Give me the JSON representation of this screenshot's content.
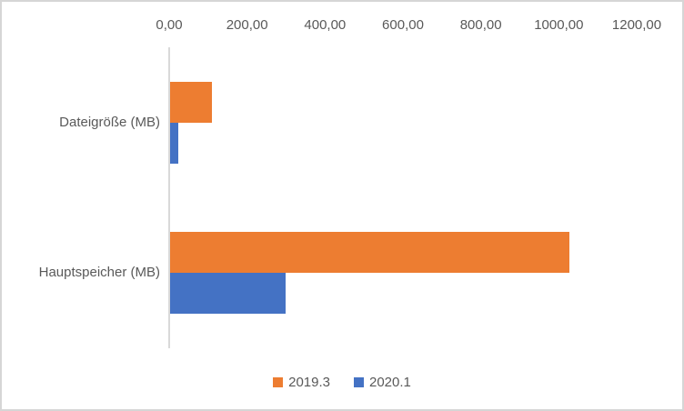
{
  "chart": {
    "background": "#ffffff",
    "border_color": "#d6d6d6",
    "axis_line_color": "#d9d9d9",
    "text_color": "#595959"
  },
  "chart_data": {
    "type": "bar",
    "orientation": "horizontal",
    "title": "",
    "xlabel": "",
    "ylabel": "",
    "xlim": [
      0,
      1200
    ],
    "grid": false,
    "legend_position": "bottom",
    "categories": [
      "Dateigröße (MB)",
      "Hauptspeicher (MB)"
    ],
    "series": [
      {
        "name": "2019.3",
        "color": "#ED7D31",
        "values": [
          107,
          1024
        ]
      },
      {
        "name": "2020.1",
        "color": "#4472C4",
        "values": [
          21,
          296
        ]
      }
    ],
    "x_ticks": [
      {
        "value": 0,
        "label": "0,00"
      },
      {
        "value": 200,
        "label": "200,00"
      },
      {
        "value": 400,
        "label": "400,00"
      },
      {
        "value": 600,
        "label": "600,00"
      },
      {
        "value": 800,
        "label": "800,00"
      },
      {
        "value": 1000,
        "label": "1000,00"
      },
      {
        "value": 1200,
        "label": "1200,00"
      }
    ]
  }
}
